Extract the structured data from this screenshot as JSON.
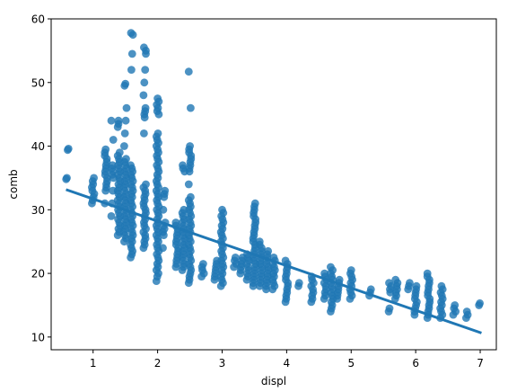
{
  "chart_data": {
    "type": "scatter",
    "title": "",
    "xlabel": "displ",
    "ylabel": "comb",
    "xlim": [
      0.35,
      7.25
    ],
    "ylim": [
      8,
      60
    ],
    "xticks": [
      1,
      2,
      3,
      4,
      5,
      6,
      7
    ],
    "yticks": [
      10,
      20,
      30,
      40,
      50,
      60
    ],
    "grid": false,
    "legend": "none",
    "colors": {
      "points": "#1f77b4",
      "line": "#1f77b4",
      "axis": "#000000"
    },
    "regression_line": {
      "x": [
        0.6,
        7.0
      ],
      "y": [
        33.1,
        10.7
      ]
    },
    "series": [
      {
        "clusters": [
          {
            "x": 0.6,
            "y": [
              34.8,
              35.0,
              39.4,
              39.6
            ]
          },
          {
            "x": 1.0,
            "y": [
              31.0,
              31.5,
              32.0,
              32.5,
              33.0,
              34.0,
              35.0
            ]
          },
          {
            "x": 1.2,
            "y": [
              31.0,
              33.0,
              34.0,
              35.0,
              36.0,
              37.0,
              38.0,
              39.0,
              39.5
            ]
          },
          {
            "x": 1.3,
            "y": [
              29.0,
              31.0,
              33.0,
              35.0,
              36.5,
              37.0,
              41.0,
              44.0
            ]
          },
          {
            "x": 1.4,
            "y": [
              26.0,
              27.0,
              28.0,
              29.0,
              30.0,
              31.0,
              32.0,
              33.0,
              34.0,
              35.0,
              36.0,
              37.0,
              38.0,
              39.0,
              43.0,
              44.0
            ]
          },
          {
            "x": 1.5,
            "y": [
              25.0,
              26.0,
              27.0,
              28.0,
              29.0,
              30.0,
              31.0,
              32.0,
              33.0,
              34.0,
              35.0,
              36.0,
              37.0,
              38.0,
              40.0,
              42.0,
              44.0,
              46.0,
              49.5,
              49.8
            ]
          },
          {
            "x": 1.6,
            "y": [
              22.5,
              24.0,
              25.0,
              26.0,
              27.0,
              28.0,
              29.0,
              30.0,
              31.0,
              32.0,
              33.0,
              34.0,
              35.0,
              36.0,
              37.0,
              52.0,
              54.5,
              57.5,
              57.8
            ]
          },
          {
            "x": 1.8,
            "y": [
              24.0,
              25.0,
              26.0,
              27.0,
              28.0,
              29.0,
              30.0,
              31.0,
              32.0,
              33.0,
              34.0,
              42.0,
              44.5,
              46.0,
              48.0,
              50.0,
              52.0,
              54.5,
              55.5
            ]
          },
          {
            "x": 2.0,
            "y": [
              18.8,
              19.5,
              21.0,
              22.0,
              23.0,
              24.0,
              25.0,
              26.0,
              27.0,
              28.0,
              29.0,
              30.0,
              31.0,
              32.0,
              33.0,
              34.0,
              35.0,
              36.0,
              37.0,
              38.0,
              39.0,
              40.0,
              41.0,
              42.0,
              45.0,
              46.5,
              47.5
            ]
          },
          {
            "x": 2.1,
            "y": [
              24.0,
              26.0,
              27.0,
              28.0,
              30.0,
              32.0,
              33.0
            ]
          },
          {
            "x": 2.3,
            "y": [
              21.0,
              22.0,
              23.0,
              24.0,
              25.0,
              26.0,
              27.0,
              28.0
            ]
          },
          {
            "x": 2.4,
            "y": [
              20.5,
              22.0,
              23.0,
              24.0,
              25.0,
              26.0,
              27.0,
              28.0,
              29.0,
              30.0,
              36.0,
              37.0
            ]
          },
          {
            "x": 2.5,
            "y": [
              18.5,
              19.5,
              21.0,
              22.0,
              23.0,
              24.0,
              25.0,
              26.0,
              27.0,
              28.0,
              29.0,
              30.0,
              31.0,
              32.0,
              34.0,
              36.0,
              37.0,
              38.0,
              39.0,
              40.0,
              46.0,
              51.7
            ]
          },
          {
            "x": 2.7,
            "y": [
              19.5,
              20.5,
              21.5
            ]
          },
          {
            "x": 2.9,
            "y": [
              19.0,
              20.0,
              21.0,
              22.0
            ]
          },
          {
            "x": 3.0,
            "y": [
              18.0,
              19.0,
              20.0,
              21.0,
              22.0,
              23.0,
              24.0,
              25.0,
              26.0,
              27.0,
              28.0,
              29.0,
              30.0
            ]
          },
          {
            "x": 3.2,
            "y": [
              21.0,
              22.0,
              22.5
            ]
          },
          {
            "x": 3.3,
            "y": [
              20.0,
              21.0,
              22.0,
              22.5
            ]
          },
          {
            "x": 3.4,
            "y": [
              19.0,
              20.0,
              21.0,
              22.0,
              23.0
            ]
          },
          {
            "x": 3.5,
            "y": [
              18.0,
              19.0,
              20.0,
              21.0,
              22.0,
              23.0,
              24.0,
              25.0,
              26.0,
              27.0,
              28.0,
              29.0,
              30.0,
              31.0
            ]
          },
          {
            "x": 3.6,
            "y": [
              18.0,
              19.0,
              20.0,
              21.0,
              22.0,
              23.0,
              24.0,
              25.0
            ]
          },
          {
            "x": 3.7,
            "y": [
              17.5,
              18.5,
              19.5,
              20.5,
              21.5,
              22.5,
              23.5
            ]
          },
          {
            "x": 3.8,
            "y": [
              17.5,
              18.5,
              19.5,
              20.5,
              21.5,
              22.5
            ]
          },
          {
            "x": 4.0,
            "y": [
              15.5,
              16.5,
              17.5,
              18.5,
              19.5,
              20.5,
              21.5,
              22.0
            ]
          },
          {
            "x": 4.2,
            "y": [
              18.0,
              18.5
            ]
          },
          {
            "x": 4.4,
            "y": [
              15.5,
              16.5,
              17.5,
              18.5,
              19.5
            ]
          },
          {
            "x": 4.6,
            "y": [
              16.0,
              17.0,
              18.0,
              19.0,
              20.0
            ]
          },
          {
            "x": 4.7,
            "y": [
              14.0,
              15.5,
              16.5,
              17.5,
              18.5,
              19.5,
              20.5,
              21.0
            ]
          },
          {
            "x": 4.8,
            "y": [
              16.0,
              17.0,
              18.0,
              19.0
            ]
          },
          {
            "x": 5.0,
            "y": [
              16.0,
              17.0,
              18.0,
              19.0,
              20.0,
              20.5
            ]
          },
          {
            "x": 5.3,
            "y": [
              16.5,
              17.0,
              17.5
            ]
          },
          {
            "x": 5.6,
            "y": [
              14.0,
              14.5,
              17.0,
              18.0,
              18.5
            ]
          },
          {
            "x": 5.7,
            "y": [
              16.0,
              17.0,
              18.0,
              18.5,
              19.0
            ]
          },
          {
            "x": 5.9,
            "y": [
              17.5,
              18.0,
              18.5
            ]
          },
          {
            "x": 6.0,
            "y": [
              13.5,
              14.5,
              15.0,
              15.5,
              16.0,
              17.0,
              18.0
            ]
          },
          {
            "x": 6.2,
            "y": [
              13.0,
              14.0,
              15.0,
              16.0,
              17.0,
              18.0,
              19.0,
              20.0
            ]
          },
          {
            "x": 6.4,
            "y": [
              13.0,
              14.0,
              15.0,
              16.0,
              17.0,
              18.0
            ]
          },
          {
            "x": 6.6,
            "y": [
              13.5,
              14.5,
              15.0
            ]
          },
          {
            "x": 6.8,
            "y": [
              13.0,
              14.0
            ]
          },
          {
            "x": 7.0,
            "y": [
              15.0,
              15.3
            ]
          }
        ]
      }
    ]
  }
}
